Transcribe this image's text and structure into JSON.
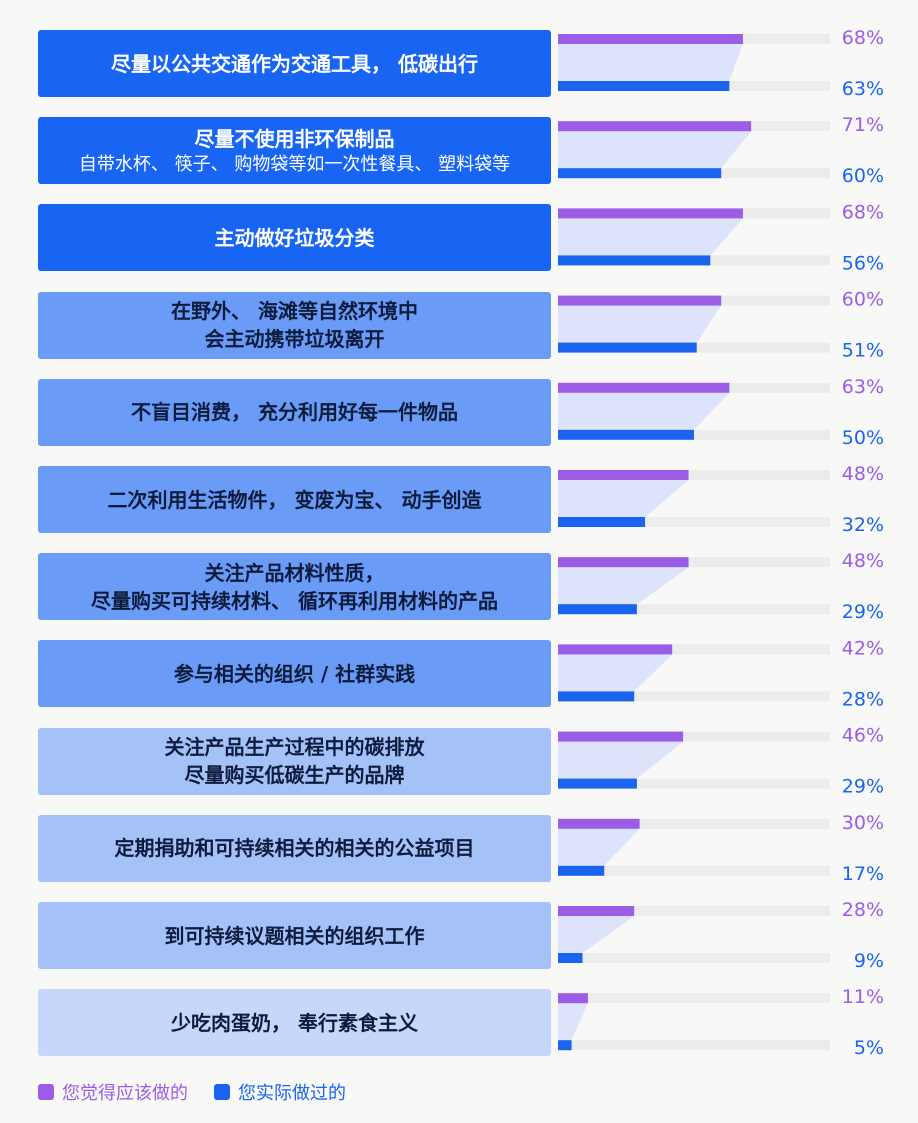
{
  "chart_data": {
    "type": "bar",
    "orientation": "horizontal",
    "xlim": [
      0,
      100
    ],
    "grid": false,
    "legend_position": "bottom-left",
    "categories": [
      {
        "main": "尽量以公共交通作为交通工具， 低碳出行",
        "sub": ""
      },
      {
        "main": "尽量不使用非环保制品",
        "sub": "自带水杯、 筷子、 购物袋等如一次性餐具、 塑料袋等"
      },
      {
        "main": "主动做好垃圾分类",
        "sub": ""
      },
      {
        "main": "在野外、 海滩等自然环境中\n会主动携带垃圾离开",
        "sub": ""
      },
      {
        "main": "不盲目消费， 充分利用好每一件物品",
        "sub": ""
      },
      {
        "main": "二次利用生活物件， 变废为宝、 动手创造",
        "sub": ""
      },
      {
        "main": "关注产品材料性质，\n尽量购买可持续材料、 循环再利用材料的产品",
        "sub": ""
      },
      {
        "main": "参与相关的组织 / 社群实践",
        "sub": ""
      },
      {
        "main": "关注产品生产过程中的碳排放\n尽量购买低碳生产的品牌",
        "sub": ""
      },
      {
        "main": "定期捐助和可持续相关的相关的公益项目",
        "sub": ""
      },
      {
        "main": "到可持续议题相关的组织工作",
        "sub": ""
      },
      {
        "main": "少吃肉蛋奶， 奉行素食主义",
        "sub": ""
      }
    ],
    "series": [
      {
        "name": "您觉得应该做的",
        "color": "#9b5de5",
        "values": [
          68,
          71,
          68,
          60,
          63,
          48,
          48,
          42,
          46,
          30,
          28,
          11
        ],
        "labels": [
          "68%",
          "71%",
          "68%",
          "60%",
          "63%",
          "48%",
          "48%",
          "42%",
          "46%",
          "30%",
          "28%",
          "11%"
        ]
      },
      {
        "name": "您实际做过的",
        "color": "#1a64f0",
        "values": [
          63,
          60,
          56,
          51,
          50,
          32,
          29,
          28,
          29,
          17,
          9,
          5
        ],
        "labels": [
          "63%",
          "60%",
          "56%",
          "51%",
          "50%",
          "32%",
          "29%",
          "28%",
          "29%",
          "17%",
          "9%",
          "5%"
        ]
      }
    ]
  },
  "legend": [
    {
      "label": "您觉得应该做的",
      "color": "#9b5de5"
    },
    {
      "label": "您实际做过的",
      "color": "#1a64f0"
    }
  ],
  "colors": {
    "track": "#ececec",
    "connector": "#dde3fb",
    "box_text_light": "#ffffff",
    "box_text_dark": "#0d1c3d",
    "box_fills": [
      "#1765f2",
      "#1765f2",
      "#1765f2",
      "#6a9bf6",
      "#6a9bf6",
      "#6a9bf6",
      "#6a9bf6",
      "#6a9bf6",
      "#a4c1f8",
      "#a4c1f8",
      "#a4c1f8",
      "#c5d7fa"
    ]
  }
}
